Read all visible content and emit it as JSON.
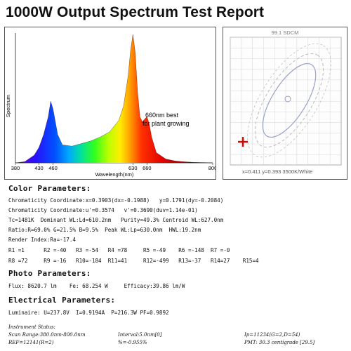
{
  "title": "1000W Output Spectrum Test Report",
  "spectrum": {
    "ylabel": "Spectrum",
    "xlabel": "Wavelength(nm)",
    "annotation_line1": "660nm best",
    "annotation_line2": "for plant growing"
  },
  "chart_data": {
    "type": "line",
    "xlabel": "Wavelength(nm)",
    "ylabel": "Spectrum",
    "xlim": [
      380,
      800
    ],
    "ylim": [
      0,
      1
    ],
    "x_ticks": [
      "380",
      "430",
      "460",
      "630",
      "660",
      "800"
    ],
    "x": [
      380,
      400,
      420,
      430,
      440,
      450,
      455,
      460,
      470,
      480,
      500,
      520,
      540,
      560,
      580,
      600,
      610,
      620,
      625,
      630,
      635,
      640,
      645,
      650,
      655,
      660,
      665,
      670,
      680,
      700,
      720,
      740,
      760,
      780,
      800
    ],
    "values": [
      0.0,
      0.01,
      0.06,
      0.12,
      0.22,
      0.36,
      0.48,
      0.42,
      0.22,
      0.14,
      0.13,
      0.15,
      0.17,
      0.2,
      0.24,
      0.33,
      0.44,
      0.68,
      0.87,
      1.0,
      0.86,
      0.55,
      0.36,
      0.32,
      0.34,
      0.36,
      0.3,
      0.2,
      0.08,
      0.03,
      0.015,
      0.008,
      0.004,
      0.002,
      0.0
    ]
  },
  "cie": {
    "label_top": "99.1 SDCM",
    "readout": "x=0.411  y=0.393 3500K/White"
  },
  "color": {
    "header": "Color Parameters:",
    "line1": "Chromaticity Coordinate:x=0.3903(dx=-0.1988)   y=0.1791(dy=-0.2084)",
    "line2": "Chromaticity Coordinate:u'=0.3574   v'=0.3690(duv=1.14e-01)",
    "line3": "Tc=1481K  Dominant WL:Ld=610.2nm   Purity=49.3% Centroid WL:627.0nm",
    "line4": "Ratio:R=69.0% G=21.5% B=9.5%  Peak WL:Lp=630.0nm  HWL:19.2nm",
    "line5": "Render Index:Ra=-17.4",
    "line6": "R1 =1      R2 =-40   R3 =-54   R4 =78     R5 =-49    R6 =-148  R7 =-0",
    "line7": "R8 =72     R9 =-16   R10=-184  R11=41     R12=-499   R13=-37   R14=27    R15=4"
  },
  "photo": {
    "header": "Photo Parameters:",
    "line1": "Flux: 8620.7 lm    Fe: 68.254 W     Efficacy:39.86 lm/W"
  },
  "electrical": {
    "header": "Electrical Parameters:",
    "line1": "Luminaire: U=237.8V  I=0.9194A  P=216.3W PF=0.9892"
  },
  "instrument": {
    "status": "Instrument Status:",
    "scan": "Scan Range:380.0nm-800.0nm",
    "interval": "Interval:5.0nm[0]",
    "ip": "Ip=11234(G=2,D=54)",
    "ref": "REF=12141(R=2)",
    "pct": "%=-0.955%",
    "pmt": "PMT: 30.3 centigrade [29.5]"
  },
  "colors": {
    "text": "#111111",
    "marker": "#e00000",
    "ellipse": "#9aa0c8"
  }
}
